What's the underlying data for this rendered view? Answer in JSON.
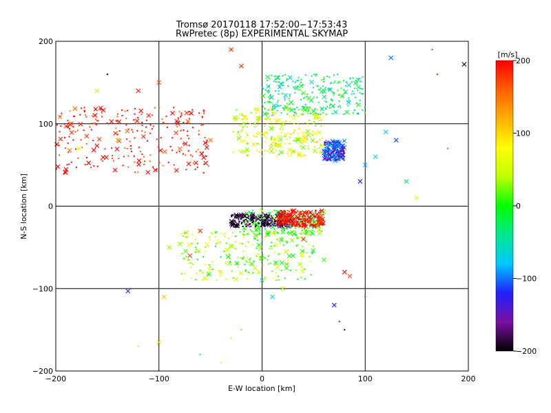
{
  "chart_data": {
    "type": "scatter",
    "title": "Tromsø 20170118 17:52:00−17:53:43",
    "subtitle": "RwPretec (8p) EXPERIMENTAL SKYMAP",
    "xlabel": "E-W location [km]",
    "ylabel": "N-S location [km]",
    "xlim": [
      -200,
      200
    ],
    "ylim": [
      -200,
      200
    ],
    "xticks": [
      "−200",
      "−100",
      "0",
      "100",
      "200"
    ],
    "yticks": [
      "−200",
      "−100",
      "0",
      "100",
      "200"
    ],
    "grid": true,
    "marker_types": [
      "cross",
      "dot"
    ],
    "colorbar": {
      "label": "[m/s]",
      "range": [
        -200,
        200
      ],
      "ticks": [
        "200",
        "100",
        "0",
        "−100",
        "−200"
      ],
      "colormap": [
        "#000000",
        "#7a0fa0",
        "#2020ff",
        "#00c8ff",
        "#00e890",
        "#00ff00",
        "#c0ff00",
        "#ffff00",
        "#ffb000",
        "#ff6000",
        "#ff0000"
      ]
    },
    "clusters": [
      {
        "region": "north-east",
        "x": [
          60,
          80
        ],
        "y": [
          55,
          80
        ],
        "velocity": -120
      },
      {
        "region": "north-central",
        "x": [
          -30,
          60
        ],
        "y": [
          60,
          120
        ],
        "velocity": 60
      },
      {
        "region": "north-west",
        "x": [
          -200,
          -50
        ],
        "y": [
          40,
          120
        ],
        "velocity": 190
      },
      {
        "region": "north-top",
        "x": [
          0,
          100
        ],
        "y": [
          110,
          160
        ],
        "velocity": -30
      },
      {
        "region": "center-strip",
        "x": [
          -20,
          60
        ],
        "y": [
          -35,
          -5
        ],
        "velocity": 0
      },
      {
        "region": "center-dark",
        "x": [
          -30,
          30
        ],
        "y": [
          -25,
          -10
        ],
        "velocity": -190
      },
      {
        "region": "center-red",
        "x": [
          15,
          60
        ],
        "y": [
          -25,
          -5
        ],
        "velocity": 200
      },
      {
        "region": "south-spread",
        "x": [
          -80,
          50
        ],
        "y": [
          -90,
          -30
        ],
        "velocity": 30
      }
    ],
    "points": [
      [
        -190,
        97,
        "cross",
        180
      ],
      [
        -185,
        100,
        "cross",
        170
      ],
      [
        -178,
        70,
        "cross",
        60
      ],
      [
        -170,
        85,
        "cross",
        180
      ],
      [
        -160,
        140,
        "cross",
        50
      ],
      [
        -150,
        160,
        "dot",
        -200
      ],
      [
        -140,
        80,
        "cross",
        120
      ],
      [
        -130,
        -103,
        "cross",
        -120
      ],
      [
        -120,
        140,
        "cross",
        190
      ],
      [
        -110,
        110,
        "cross",
        190
      ],
      [
        -100,
        150,
        "cross",
        170
      ],
      [
        -95,
        -110,
        "cross",
        110
      ],
      [
        -90,
        -50,
        "cross",
        30
      ],
      [
        -70,
        -60,
        "cross",
        170
      ],
      [
        -60,
        -30,
        "cross",
        180
      ],
      [
        -50,
        80,
        "cross",
        150
      ],
      [
        -40,
        -80,
        "cross",
        40
      ],
      [
        -30,
        190,
        "cross",
        190
      ],
      [
        -20,
        170,
        "cross",
        180
      ],
      [
        -10,
        -70,
        "cross",
        10
      ],
      [
        0,
        -90,
        "cross",
        -40
      ],
      [
        10,
        -110,
        "cross",
        -60
      ],
      [
        20,
        -100,
        "cross",
        40
      ],
      [
        30,
        -60,
        "cross",
        -20
      ],
      [
        40,
        -40,
        "cross",
        180
      ],
      [
        60,
        -65,
        "cross",
        10
      ],
      [
        70,
        -120,
        "cross",
        -120
      ],
      [
        80,
        -80,
        "cross",
        190
      ],
      [
        85,
        -85,
        "cross",
        170
      ],
      [
        95,
        30,
        "cross",
        -120
      ],
      [
        100,
        50,
        "cross",
        -90
      ],
      [
        110,
        60,
        "cross",
        -60
      ],
      [
        120,
        90,
        "cross",
        -70
      ],
      [
        130,
        80,
        "cross",
        -110
      ],
      [
        140,
        30,
        "cross",
        -30
      ],
      [
        150,
        10,
        "cross",
        60
      ],
      [
        170,
        160,
        "dot",
        190
      ],
      [
        180,
        70,
        "dot",
        170
      ],
      [
        196,
        172,
        "cross",
        -200
      ],
      [
        -120,
        -170,
        "dot",
        100
      ],
      [
        -100,
        -165,
        "cross",
        100
      ],
      [
        -60,
        -180,
        "dot",
        -40
      ],
      [
        -40,
        -190,
        "dot",
        60
      ],
      [
        -30,
        -160,
        "dot",
        100
      ],
      [
        -20,
        -150,
        "dot",
        130
      ],
      [
        75,
        -140,
        "dot",
        -130
      ],
      [
        80,
        -150,
        "dot",
        -200
      ],
      [
        100,
        -110,
        "dot",
        190
      ],
      [
        165,
        190,
        "dot",
        -100
      ],
      [
        125,
        180,
        "cross",
        -100
      ]
    ]
  }
}
